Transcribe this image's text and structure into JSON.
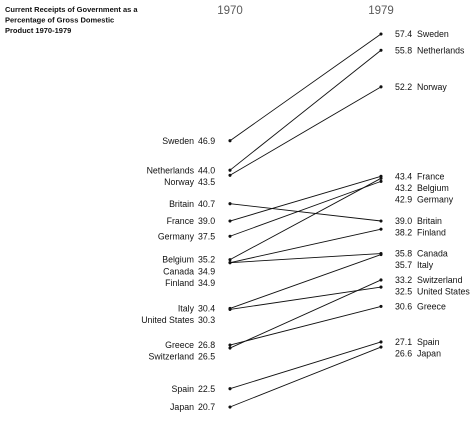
{
  "chart_data": {
    "type": "slope",
    "title": "Current Receipts of Government as a Percentage of Gross Domestic Product 1970-1979",
    "title_lines": [
      "Current Receipts of Government as a",
      "Percentage of Gross Domestic",
      "Product 1970-1979"
    ],
    "x": [
      "1970",
      "1979"
    ],
    "series": [
      {
        "name": "Sweden",
        "values": [
          46.9,
          57.4
        ]
      },
      {
        "name": "Netherlands",
        "values": [
          44.0,
          55.8
        ]
      },
      {
        "name": "Norway",
        "values": [
          43.5,
          52.2
        ]
      },
      {
        "name": "Britain",
        "values": [
          40.7,
          39.0
        ]
      },
      {
        "name": "France",
        "values": [
          39.0,
          43.4
        ]
      },
      {
        "name": "Germany",
        "values": [
          37.5,
          42.9
        ]
      },
      {
        "name": "Belgium",
        "values": [
          35.2,
          43.2
        ]
      },
      {
        "name": "Canada",
        "values": [
          34.9,
          35.8
        ]
      },
      {
        "name": "Finland",
        "values": [
          34.9,
          38.2
        ]
      },
      {
        "name": "Italy",
        "values": [
          30.4,
          35.7
        ]
      },
      {
        "name": "United States",
        "values": [
          30.3,
          32.5
        ]
      },
      {
        "name": "Greece",
        "values": [
          26.8,
          30.6
        ]
      },
      {
        "name": "Switzerland",
        "values": [
          26.5,
          33.2
        ]
      },
      {
        "name": "Spain",
        "values": [
          22.5,
          27.1
        ]
      },
      {
        "name": "Japan",
        "values": [
          20.7,
          26.6
        ]
      }
    ],
    "value_labels_1970": {
      "Sweden": "46.9",
      "Netherlands": "44.0",
      "Norway": "43.5",
      "Britain": "40.7",
      "France": "39.0",
      "Germany": "37.5",
      "Belgium": "35.2",
      "Canada": "34.9",
      "Finland": "34.9",
      "Italy": "30.4",
      "United States": "30.3",
      "Greece": "26.8",
      "Switzerland": "26.5",
      "Spain": "22.5",
      "Japan": "20.7"
    },
    "value_labels_1979": {
      "Sweden": "57.4",
      "Netherlands": "55.8",
      "Norway": "52.2",
      "Britain": "39.0",
      "France": "43.4",
      "Germany": "42.9",
      "Belgium": "43.2",
      "Canada": "35.8",
      "Finland": "38.2",
      "Italy": "35.7",
      "United States": "32.5",
      "Greece": "30.6",
      "Switzerland": "33.2",
      "Spain": "27.1",
      "Japan": "26.6"
    },
    "left_label_order": [
      "Sweden",
      "Netherlands",
      "Norway",
      "Britain",
      "France",
      "Germany",
      "Belgium",
      "Canada",
      "Finland",
      "Italy",
      "United States",
      "Greece",
      "Switzerland",
      "Spain",
      "Japan"
    ],
    "right_label_order": [
      "Sweden",
      "Netherlands",
      "Norway",
      "France",
      "Belgium",
      "Germany",
      "Britain",
      "Finland",
      "Canada",
      "Italy",
      "Switzerland",
      "United States",
      "Greece",
      "Spain",
      "Japan"
    ],
    "ylim": [
      20.7,
      57.4
    ],
    "grid": false,
    "legend": "none",
    "colors": {
      "line": "#111111",
      "text": "#111111",
      "year": "#5a5a5a"
    }
  }
}
